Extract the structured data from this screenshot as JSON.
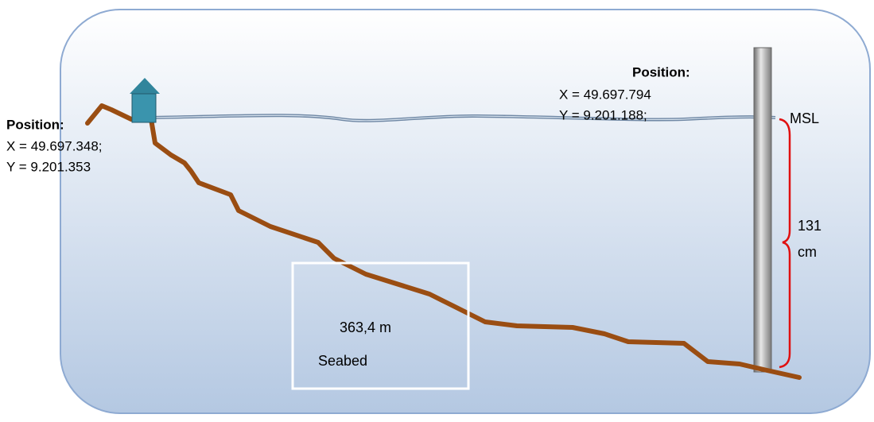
{
  "left_position": {
    "title": "Position:",
    "lines": [
      "X = 49.697.348;",
      "Y = 9.201.353"
    ]
  },
  "right_position": {
    "title": "Position:",
    "lines": [
      "X = 49.697.794",
      "Y = 9.201.188;"
    ]
  },
  "msl_label": "MSL",
  "depth_label": [
    "131",
    "cm"
  ],
  "distance_label": "363,4 m",
  "seabed_label": "Seabed"
}
